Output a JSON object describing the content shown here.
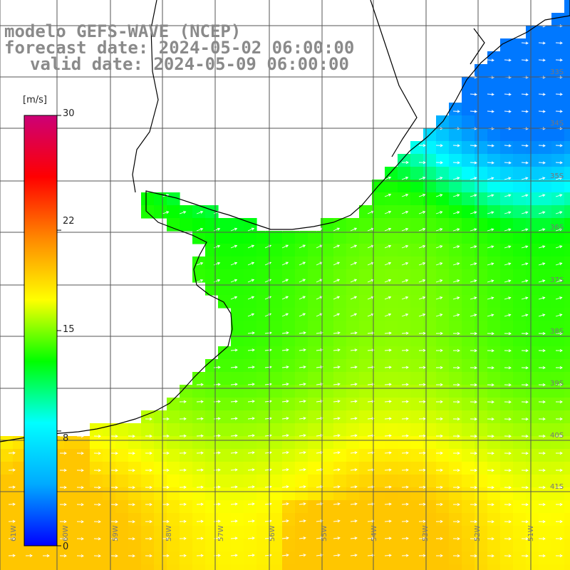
{
  "header": {
    "line1": "modelo GEFS-WAVE (NCEP)",
    "line2": "forecast date: 2024-05-02 06:00:00",
    "line3": "valid date: 2024-05-09 06:00:00"
  },
  "colorbar": {
    "unit": "[m/s]",
    "min": 0,
    "max": 30,
    "labels": [
      "30",
      "22",
      "15",
      "8",
      "0"
    ],
    "label_values": [
      30,
      22,
      15,
      8,
      0
    ],
    "colors": [
      "#0000ff",
      "#00aaff",
      "#00ffff",
      "#00ff00",
      "#ffff00",
      "#ff8800",
      "#ff0000",
      "#cc0077"
    ]
  },
  "map": {
    "lon_labels": [
      "61W",
      "60W",
      "59W",
      "58W",
      "57W",
      "56W",
      "55W",
      "54W",
      "53W",
      "52W",
      "51W"
    ],
    "lat_labels": [
      "33S",
      "34S",
      "35S",
      "36S",
      "37S",
      "38S",
      "39S",
      "40S",
      "41S"
    ],
    "grid_color": "#555555",
    "coast_color": "#000000",
    "arrow_color": "#ffffff"
  }
}
